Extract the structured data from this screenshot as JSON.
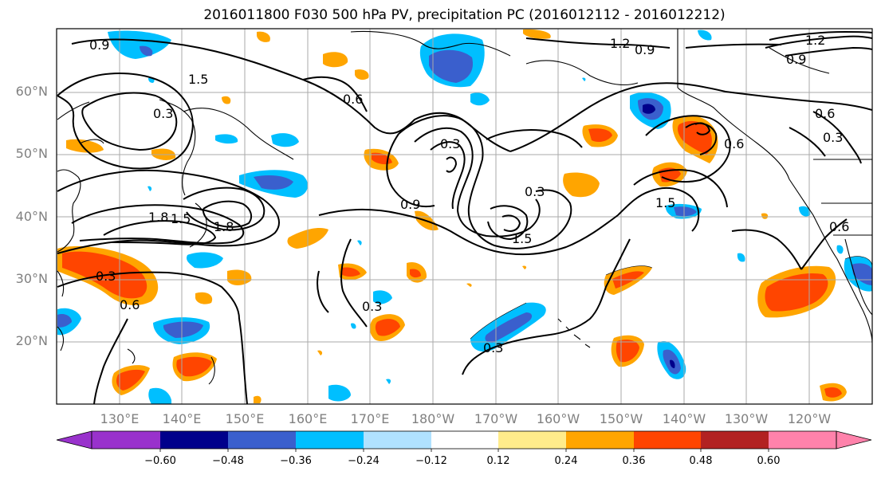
{
  "title": "2016011800 F030 500 hPa PV, precipitation PC (2016012112 - 2016012212)",
  "latitude_labels": [
    "60°N",
    "50°N",
    "40°N",
    "30°N",
    "20°N"
  ],
  "longitude_labels": [
    "130°E",
    "140°E",
    "150°E",
    "160°E",
    "170°E",
    "180°W",
    "170°W",
    "160°W",
    "150°W",
    "140°W",
    "130°W",
    "120°W"
  ],
  "contour_labels": [
    "0.9",
    "1.2",
    "1.5",
    "0.9",
    "0.3",
    "0.6",
    "1.8",
    "1.5",
    "0.9",
    "0.3",
    "1.8",
    "1.5",
    "0.3",
    "0.6",
    "0.3",
    "0.6",
    "0.3",
    "0.9",
    "1.2",
    "1.5",
    "0.6",
    "0.3",
    "0.6",
    "0.3"
  ],
  "colorbar": {
    "ticks": [
      "−0.60",
      "−0.48",
      "−0.36",
      "−0.24",
      "−0.12",
      "0.12",
      "0.24",
      "0.36",
      "0.48",
      "0.60"
    ],
    "colors": [
      "#9932cc",
      "#00008b",
      "#3a5fcd",
      "#00bfff",
      "#b0e2ff",
      "#ffffff",
      "#ffec8b",
      "#ffa500",
      "#ff4500",
      "#b22222",
      "#ff82ab"
    ]
  }
}
